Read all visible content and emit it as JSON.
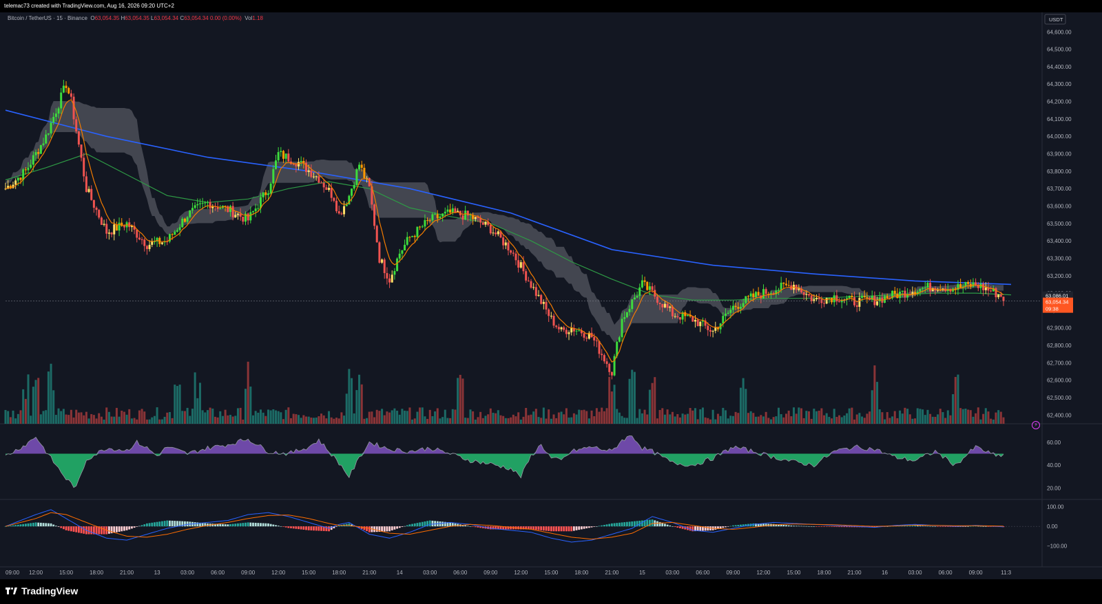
{
  "header": {
    "caption": "telemac73 created with TradingView.com, Aug 16, 2026 09:20 UTC+2"
  },
  "legend": {
    "symbol": "Bitcoin / TetherUS · 15 · Binance",
    "open_label": "O",
    "open": "63,054.35",
    "high_label": "H",
    "high": "63,054.35",
    "low_label": "L",
    "low": "63,054.34",
    "close_label": "C",
    "close": "63,054.34",
    "change": "0.00 (0.00%)",
    "vol_label": "Vol",
    "vol": "1.18"
  },
  "price_axis": {
    "currency_button": "USDT",
    "labels": [
      "64,600.00",
      "64,500.00",
      "64,400.00",
      "64,300.00",
      "64,200.00",
      "64,100.00",
      "64,000.00",
      "63,900.00",
      "63,800.00",
      "63,700.00",
      "63,600.00",
      "63,500.00",
      "63,400.00",
      "63,300.00",
      "63,200.00",
      "63,100.00",
      "63,000.00",
      "62,900.00",
      "62,800.00",
      "62,700.00",
      "62,600.00",
      "62,500.00",
      "62,400.00"
    ],
    "badge_ma": "63,086.01",
    "badge_price": "63,054.34",
    "badge_countdown": "09:38"
  },
  "rsi_axis": {
    "labels": [
      "60.00",
      "40.00",
      "20.00"
    ]
  },
  "macd_axis": {
    "labels": [
      "100.00",
      "0.00",
      "−100.00"
    ]
  },
  "time_axis": {
    "labels": [
      "09:00",
      "12:00",
      "15:00",
      "18:00",
      "21:00",
      "13",
      "03:00",
      "06:00",
      "09:00",
      "12:00",
      "15:00",
      "18:00",
      "21:00",
      "14",
      "03:00",
      "06:00",
      "09:00",
      "12:00",
      "15:00",
      "18:00",
      "21:00",
      "15",
      "03:00",
      "06:00",
      "09:00",
      "12:00",
      "15:00",
      "18:00",
      "21:00",
      "16",
      "03:00",
      "06:00",
      "09:00",
      "11:3"
    ]
  },
  "footer": {
    "brand": "TradingView"
  },
  "colors": {
    "background": "#131722",
    "up": "#26a69a",
    "down": "#ef5350",
    "candle_bright_up": "#3ddc3d",
    "candle_orange": "#ff9800",
    "candle_yellow": "#ffe066",
    "ma_long": "#2962ff",
    "ma_mid": "#2e9a45",
    "ma_fast": "#f57c00",
    "cloud": "#6b6d76",
    "rsi_up": "#8e5bd6",
    "rsi_down": "#27d07a",
    "price_badge": "#ff5722"
  },
  "chart_data": [
    {
      "type": "candlestick",
      "title": "Bitcoin / TetherUS · 15 · Binance",
      "ylim": [
        62350,
        64680
      ],
      "x_range": [
        "Aug 12 09:00",
        "Aug 16 11:30"
      ],
      "price_path_keypoints": {
        "t_hours": [
          0,
          2,
          4,
          6,
          6.5,
          8,
          10,
          12,
          14,
          16,
          18,
          20,
          22,
          24,
          26,
          27,
          29,
          31,
          32.5,
          33,
          34,
          35,
          36,
          37,
          38,
          39,
          40,
          42,
          44,
          46,
          48,
          50,
          52,
          54,
          55,
          56,
          57,
          58,
          60,
          61,
          63,
          64,
          66,
          68,
          70,
          72,
          74,
          76,
          78,
          80,
          82,
          84,
          86,
          88,
          90,
          92,
          94,
          96,
          98,
          99.5
        ],
        "price": [
          63700,
          63800,
          64000,
          64300,
          64200,
          63700,
          63450,
          63500,
          63380,
          63400,
          63550,
          63620,
          63580,
          63520,
          63700,
          63900,
          63850,
          63760,
          63650,
          63550,
          63660,
          63840,
          63700,
          63300,
          63180,
          63330,
          63420,
          63520,
          63560,
          63540,
          63470,
          63350,
          63150,
          62950,
          62880,
          62900,
          62880,
          62850,
          62650,
          62950,
          63150,
          63100,
          62980,
          62950,
          62880,
          63020,
          63080,
          63120,
          63150,
          63060,
          63080,
          63050,
          63060,
          63090,
          63120,
          63140,
          63130,
          63150,
          63100,
          63054
        ]
      },
      "last_price": 63054.34,
      "session_high": 64450,
      "session_low": 62640
    },
    {
      "type": "line",
      "name_hint": "moving averages",
      "series": [
        {
          "color_key": "ma_long",
          "x_hours": [
            0,
            10,
            20,
            30,
            40,
            50,
            60,
            70,
            80,
            90,
            99.5
          ],
          "values": [
            64150,
            64000,
            63880,
            63800,
            63700,
            63560,
            63350,
            63260,
            63210,
            63170,
            63150
          ]
        },
        {
          "color_key": "ma_mid",
          "x_hours": [
            0,
            4,
            8,
            12,
            16,
            20,
            24,
            28,
            32,
            36,
            40,
            44,
            48,
            52,
            56,
            60,
            64,
            68,
            72,
            76,
            80,
            84,
            88,
            92,
            96,
            99.5
          ],
          "values": [
            63750,
            63820,
            63900,
            63780,
            63660,
            63620,
            63640,
            63700,
            63740,
            63700,
            63590,
            63540,
            63500,
            63400,
            63280,
            63180,
            63090,
            63060,
            63060,
            63070,
            63070,
            63080,
            63090,
            63100,
            63100,
            63090
          ]
        }
      ]
    },
    {
      "type": "bar",
      "name_hint": "volume",
      "relative_scale": true,
      "spikes_at_hours": [
        2,
        3,
        4.5,
        17,
        19,
        24,
        34,
        35,
        45,
        60,
        62,
        64,
        73,
        86,
        94
      ]
    },
    {
      "type": "area",
      "name_hint": "RSI",
      "ylim": [
        10,
        75
      ],
      "x_hours": [
        0,
        2,
        3,
        4,
        5,
        6,
        7,
        8,
        10,
        12,
        13,
        14,
        15,
        16,
        18,
        20,
        22,
        24,
        26,
        28,
        30,
        31,
        33,
        34,
        35,
        36,
        38,
        40,
        42,
        44,
        46,
        48,
        50,
        51,
        52,
        53,
        54,
        55,
        56,
        58,
        60,
        61,
        62,
        63,
        64,
        66,
        68,
        70,
        72,
        74,
        76,
        78,
        80,
        82,
        84,
        86,
        88,
        90,
        92,
        94,
        96,
        98,
        99.5
      ],
      "values": [
        48,
        58,
        65,
        52,
        40,
        28,
        20,
        45,
        55,
        53,
        60,
        55,
        48,
        56,
        50,
        55,
        58,
        63,
        52,
        50,
        56,
        62,
        42,
        30,
        46,
        60,
        54,
        52,
        55,
        50,
        44,
        41,
        37,
        30,
        48,
        58,
        46,
        44,
        52,
        56,
        52,
        62,
        66,
        55,
        52,
        42,
        40,
        46,
        56,
        52,
        47,
        43,
        40,
        52,
        56,
        54,
        47,
        44,
        52,
        40,
        56,
        48,
        50
      ],
      "midline": 50
    },
    {
      "type": "line",
      "name_hint": "MACD",
      "ylim": [
        -150,
        130
      ],
      "x_hours": [
        0,
        3,
        4.5,
        6,
        8,
        10,
        12,
        14,
        16,
        18,
        20,
        22,
        24,
        26,
        28,
        30,
        32,
        33,
        34,
        36,
        38,
        40,
        42,
        44,
        46,
        48,
        50,
        52,
        54,
        56,
        58,
        60,
        62,
        63,
        64,
        66,
        68,
        70,
        72,
        74,
        76,
        78,
        80,
        82,
        84,
        86,
        88,
        90,
        92,
        94,
        96,
        98,
        99.5
      ],
      "macd": [
        0,
        60,
        85,
        40,
        -20,
        -60,
        -70,
        -40,
        -10,
        10,
        20,
        30,
        60,
        70,
        50,
        20,
        -10,
        10,
        20,
        -40,
        -60,
        -30,
        10,
        20,
        10,
        -10,
        -20,
        -30,
        -60,
        -80,
        -70,
        -40,
        -10,
        20,
        50,
        20,
        -20,
        -30,
        -10,
        10,
        20,
        15,
        10,
        5,
        0,
        -5,
        5,
        10,
        5,
        0,
        5,
        0,
        -5
      ],
      "signal": [
        0,
        40,
        70,
        60,
        20,
        -20,
        -50,
        -55,
        -40,
        -15,
        5,
        20,
        40,
        55,
        58,
        40,
        15,
        5,
        5,
        -10,
        -35,
        -40,
        -20,
        0,
        10,
        5,
        -5,
        -15,
        -35,
        -55,
        -65,
        -55,
        -35,
        -10,
        15,
        20,
        5,
        -10,
        -15,
        -5,
        8,
        12,
        10,
        8,
        4,
        0,
        2,
        6,
        5,
        3,
        3,
        2,
        0
      ]
    }
  ]
}
